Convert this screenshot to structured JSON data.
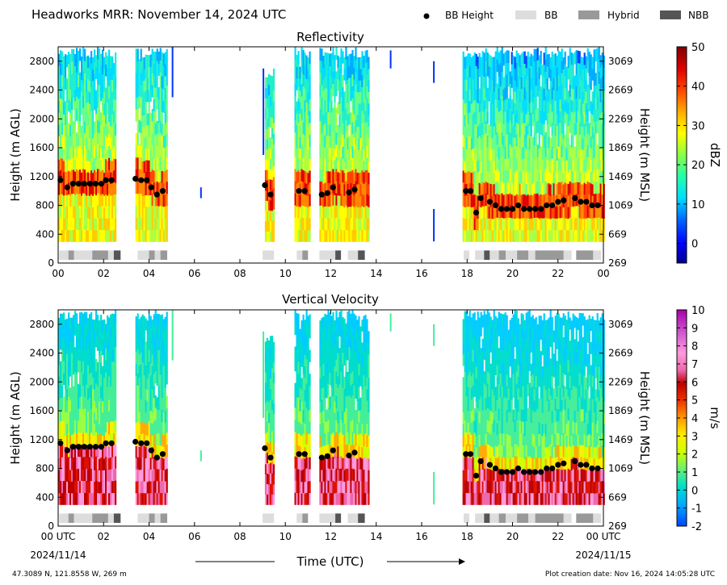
{
  "header": {
    "title": "Headworks MRR:  November 14, 2024 UTC",
    "legend": [
      {
        "label": "BB Height",
        "kind": "dot",
        "color": "#000000"
      },
      {
        "label": "BB",
        "kind": "box",
        "color": "#dddddd"
      },
      {
        "label": "Hybrid",
        "kind": "box",
        "color": "#999999"
      },
      {
        "label": "NBB",
        "kind": "box",
        "color": "#555555"
      }
    ]
  },
  "footer": {
    "location": "47.3089 N, 121.8558 W, 269 m",
    "creation": "Plot creation date: Nov 16, 2024 14:05:28 UTC",
    "xlabel": "Time (UTC)",
    "start_date": "2024/11/14",
    "end_date": "2024/11/15"
  },
  "chart_data": [
    {
      "type": "heatmap",
      "title": "Reflectivity",
      "ylabel": "Height (m AGL)",
      "ylabel_right": "Height (m MSL)",
      "colorbar_label": "dBZ",
      "colorbar_ticks": [
        0,
        10,
        20,
        30,
        40,
        50
      ],
      "colorbar_range": [
        -5,
        50
      ],
      "xlim": [
        0,
        24
      ],
      "ylim": [
        0,
        3000
      ],
      "xticks": [
        "00",
        "02",
        "04",
        "06",
        "08",
        "10",
        "12",
        "14",
        "16",
        "18",
        "20",
        "22",
        "00"
      ],
      "yticks": [
        0,
        400,
        800,
        1200,
        1600,
        2000,
        2400,
        2800
      ],
      "yticks_right": [
        269,
        669,
        1069,
        1469,
        1869,
        2269,
        2669,
        3069
      ]
    },
    {
      "type": "heatmap",
      "title": "Vertical Velocity",
      "ylabel": "Height (m AGL)",
      "ylabel_right": "Height (m MSL)",
      "colorbar_label": "m/s",
      "colorbar_ticks": [
        -2,
        -1,
        0,
        1,
        2,
        3,
        4,
        5,
        6,
        7,
        8,
        9,
        10
      ],
      "colorbar_range": [
        -2,
        10
      ],
      "xlim": [
        0,
        24
      ],
      "ylim": [
        0,
        3000
      ],
      "xticks": [
        "00 UTC",
        "02",
        "04",
        "06",
        "08",
        "10",
        "12",
        "14",
        "16",
        "18",
        "20",
        "22",
        "00 UTC"
      ],
      "yticks": [
        0,
        400,
        800,
        1200,
        1600,
        2000,
        2400,
        2800
      ],
      "yticks_right": [
        269,
        669,
        1069,
        1469,
        1869,
        2269,
        2669,
        3069
      ]
    }
  ],
  "echo_periods": [
    {
      "start": 0.0,
      "end": 2.55,
      "top": 3000
    },
    {
      "start": 3.4,
      "end": 4.8,
      "top": 3000
    },
    {
      "start": 9.1,
      "end": 9.5,
      "top": 2700
    },
    {
      "start": 10.4,
      "end": 11.1,
      "top": 3000
    },
    {
      "start": 11.5,
      "end": 13.7,
      "top": 3000
    },
    {
      "start": 17.8,
      "end": 24.0,
      "top": 3000
    }
  ],
  "bb_height_points": [
    [
      0.1,
      1150
    ],
    [
      0.4,
      1050
    ],
    [
      0.65,
      1100
    ],
    [
      0.9,
      1100
    ],
    [
      1.15,
      1100
    ],
    [
      1.4,
      1100
    ],
    [
      1.65,
      1100
    ],
    [
      1.9,
      1100
    ],
    [
      2.1,
      1150
    ],
    [
      2.35,
      1150
    ],
    [
      3.4,
      1170
    ],
    [
      3.65,
      1150
    ],
    [
      3.9,
      1150
    ],
    [
      4.1,
      1050
    ],
    [
      4.35,
      950
    ],
    [
      4.6,
      1000
    ],
    [
      9.1,
      1080
    ],
    [
      9.35,
      950
    ],
    [
      10.6,
      1000
    ],
    [
      10.85,
      1000
    ],
    [
      11.6,
      950
    ],
    [
      11.85,
      970
    ],
    [
      12.1,
      1050
    ],
    [
      12.8,
      980
    ],
    [
      13.05,
      1020
    ],
    [
      17.95,
      1000
    ],
    [
      18.15,
      1000
    ],
    [
      18.4,
      700
    ],
    [
      18.6,
      900
    ],
    [
      19.0,
      850
    ],
    [
      19.25,
      800
    ],
    [
      19.5,
      750
    ],
    [
      19.75,
      750
    ],
    [
      20.0,
      750
    ],
    [
      20.25,
      800
    ],
    [
      20.5,
      750
    ],
    [
      20.75,
      750
    ],
    [
      21.0,
      750
    ],
    [
      21.25,
      750
    ],
    [
      21.5,
      800
    ],
    [
      21.75,
      800
    ],
    [
      22.0,
      850
    ],
    [
      22.25,
      870
    ],
    [
      22.75,
      900
    ],
    [
      23.0,
      850
    ],
    [
      23.25,
      850
    ],
    [
      23.5,
      800
    ],
    [
      23.75,
      800
    ]
  ],
  "bb_type_segments": [
    {
      "start": 0.05,
      "end": 0.45,
      "type": "BB"
    },
    {
      "start": 0.45,
      "end": 0.7,
      "type": "Hybrid"
    },
    {
      "start": 0.7,
      "end": 1.5,
      "type": "BB"
    },
    {
      "start": 1.5,
      "end": 2.2,
      "type": "Hybrid"
    },
    {
      "start": 2.2,
      "end": 2.45,
      "type": "BB"
    },
    {
      "start": 2.45,
      "end": 2.75,
      "type": "NBB"
    },
    {
      "start": 3.5,
      "end": 4.0,
      "type": "BB"
    },
    {
      "start": 4.0,
      "end": 4.25,
      "type": "Hybrid"
    },
    {
      "start": 4.25,
      "end": 4.5,
      "type": "BB"
    },
    {
      "start": 4.5,
      "end": 4.8,
      "type": "Hybrid"
    },
    {
      "start": 9.0,
      "end": 9.5,
      "type": "BB"
    },
    {
      "start": 10.5,
      "end": 10.75,
      "type": "BB"
    },
    {
      "start": 10.75,
      "end": 11.0,
      "type": "Hybrid"
    },
    {
      "start": 11.5,
      "end": 12.2,
      "type": "BB"
    },
    {
      "start": 12.2,
      "end": 12.45,
      "type": "NBB"
    },
    {
      "start": 12.75,
      "end": 13.2,
      "type": "BB"
    },
    {
      "start": 13.2,
      "end": 13.5,
      "type": "NBB"
    },
    {
      "start": 17.85,
      "end": 18.1,
      "type": "BB"
    },
    {
      "start": 18.35,
      "end": 18.75,
      "type": "BB"
    },
    {
      "start": 18.75,
      "end": 19.0,
      "type": "NBB"
    },
    {
      "start": 19.0,
      "end": 19.4,
      "type": "BB"
    },
    {
      "start": 19.4,
      "end": 19.7,
      "type": "Hybrid"
    },
    {
      "start": 19.7,
      "end": 20.2,
      "type": "BB"
    },
    {
      "start": 20.2,
      "end": 20.7,
      "type": "Hybrid"
    },
    {
      "start": 20.7,
      "end": 21.0,
      "type": "BB"
    },
    {
      "start": 21.0,
      "end": 22.25,
      "type": "Hybrid"
    },
    {
      "start": 22.25,
      "end": 22.6,
      "type": "BB"
    },
    {
      "start": 22.8,
      "end": 23.55,
      "type": "Hybrid"
    },
    {
      "start": 23.55,
      "end": 23.9,
      "type": "BB"
    }
  ],
  "scattered_echoes": [
    {
      "t": 6.25,
      "b": 900,
      "top": 1050
    },
    {
      "t": 9.0,
      "b": 1500,
      "top": 2700
    },
    {
      "t": 14.6,
      "b": 2700,
      "top": 2950
    },
    {
      "t": 16.5,
      "b": 300,
      "top": 750
    },
    {
      "t": 16.5,
      "b": 2500,
      "top": 2800
    },
    {
      "t": 5.0,
      "b": 2300,
      "top": 3000
    }
  ]
}
